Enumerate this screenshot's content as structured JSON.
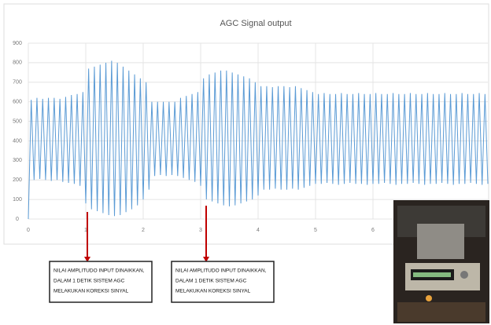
{
  "chart_data": {
    "type": "line",
    "title": "AGC Signal output",
    "x": [
      0,
      0.05,
      0.1,
      0.15,
      0.2,
      0.25,
      0.3,
      0.35,
      0.4,
      0.45,
      0.5,
      0.55,
      0.6,
      0.65,
      0.7,
      0.75,
      0.8,
      0.85,
      0.9,
      0.95,
      1,
      1.05,
      1.1,
      1.15,
      1.2,
      1.25,
      1.3,
      1.35,
      1.4,
      1.45,
      1.5,
      1.55,
      1.6,
      1.65,
      1.7,
      1.75,
      1.8,
      1.85,
      1.9,
      1.95,
      2,
      2.05,
      2.1,
      2.15,
      2.2,
      2.25,
      2.3,
      2.35,
      2.4,
      2.45,
      2.5,
      2.55,
      2.6,
      2.65,
      2.7,
      2.75,
      2.8,
      2.85,
      2.9,
      2.95,
      3,
      3.05,
      3.1,
      3.15,
      3.2,
      3.25,
      3.3,
      3.35,
      3.4,
      3.45,
      3.5,
      3.55,
      3.6,
      3.65,
      3.7,
      3.75,
      3.8,
      3.85,
      3.9,
      3.95,
      4,
      4.05,
      4.1,
      4.15,
      4.2,
      4.25,
      4.3,
      4.35,
      4.4,
      4.45,
      4.5,
      4.55,
      4.6,
      4.65,
      4.7,
      4.75,
      4.8,
      4.85,
      4.9,
      4.95,
      5,
      5.05,
      5.1,
      5.15,
      5.2,
      5.25,
      5.3,
      5.35,
      5.4,
      5.45,
      5.5,
      5.55,
      5.6,
      5.65,
      5.7,
      5.75,
      5.8,
      5.85,
      5.9,
      5.95,
      6,
      6.05,
      6.1,
      6.15,
      6.2,
      6.25,
      6.3,
      6.35,
      6.4,
      6.45,
      6.5,
      6.55,
      6.6,
      6.65,
      6.7,
      6.75,
      6.8,
      6.85,
      6.9,
      6.95,
      7,
      7.05,
      7.1,
      7.15,
      7.2,
      7.25,
      7.3,
      7.35,
      7.4,
      7.45,
      7.5,
      7.55,
      7.6,
      7.65,
      7.7,
      7.75,
      7.8,
      7.85,
      7.9,
      7.95,
      8
    ],
    "series": [
      {
        "name": "AGC Signal",
        "color": "#5b9bd5",
        "values": [
          0,
          610,
          200,
          620,
          205,
          615,
          200,
          620,
          195,
          620,
          200,
          615,
          190,
          625,
          185,
          635,
          180,
          640,
          170,
          650,
          80,
          770,
          50,
          780,
          40,
          790,
          30,
          800,
          20,
          810,
          15,
          800,
          20,
          780,
          35,
          760,
          50,
          740,
          70,
          720,
          100,
          700,
          150,
          600,
          220,
          600,
          225,
          600,
          220,
          600,
          225,
          600,
          220,
          620,
          210,
          630,
          200,
          640,
          190,
          650,
          170,
          720,
          100,
          740,
          90,
          750,
          80,
          760,
          70,
          760,
          65,
          750,
          70,
          740,
          80,
          730,
          90,
          720,
          100,
          700,
          120,
          680,
          150,
          680,
          150,
          675,
          155,
          680,
          150,
          680,
          150,
          675,
          155,
          680,
          150,
          670,
          160,
          660,
          170,
          650,
          180,
          640,
          180,
          645,
          185,
          640,
          180,
          640,
          175,
          645,
          180,
          640,
          185,
          640,
          180,
          645,
          180,
          640,
          175,
          640,
          180,
          645,
          180,
          640,
          185,
          640,
          180,
          645,
          175,
          640,
          180,
          640,
          180,
          645,
          185,
          640,
          180,
          640,
          175,
          645,
          180,
          640,
          180,
          640,
          185,
          645,
          180,
          640,
          175,
          640,
          180,
          645,
          180,
          640,
          185,
          640,
          180,
          645,
          175,
          640,
          180
        ]
      }
    ],
    "xlim": [
      0,
      8
    ],
    "ylim": [
      0,
      900
    ],
    "xticks": [
      0,
      1,
      2,
      3,
      4,
      5,
      6
    ],
    "yticks": [
      0,
      100,
      200,
      300,
      400,
      500,
      600,
      700,
      800,
      900
    ],
    "grid": true,
    "annotations": [
      {
        "lines": [
          "NILAI AMPLITUDO INPUT DINAIKKAN,",
          "DALAM  1 DETIK SISTEM AGC",
          "MELAKUKAN KOREKSI SINYAL"
        ]
      },
      {
        "lines": [
          "NILAI AMPLITUDO INPUT DINAIKKAN,",
          "DALAM  1 DETIK SISTEM AGC",
          "MELAKUKAN KOREKSI SINYAL"
        ]
      }
    ]
  }
}
